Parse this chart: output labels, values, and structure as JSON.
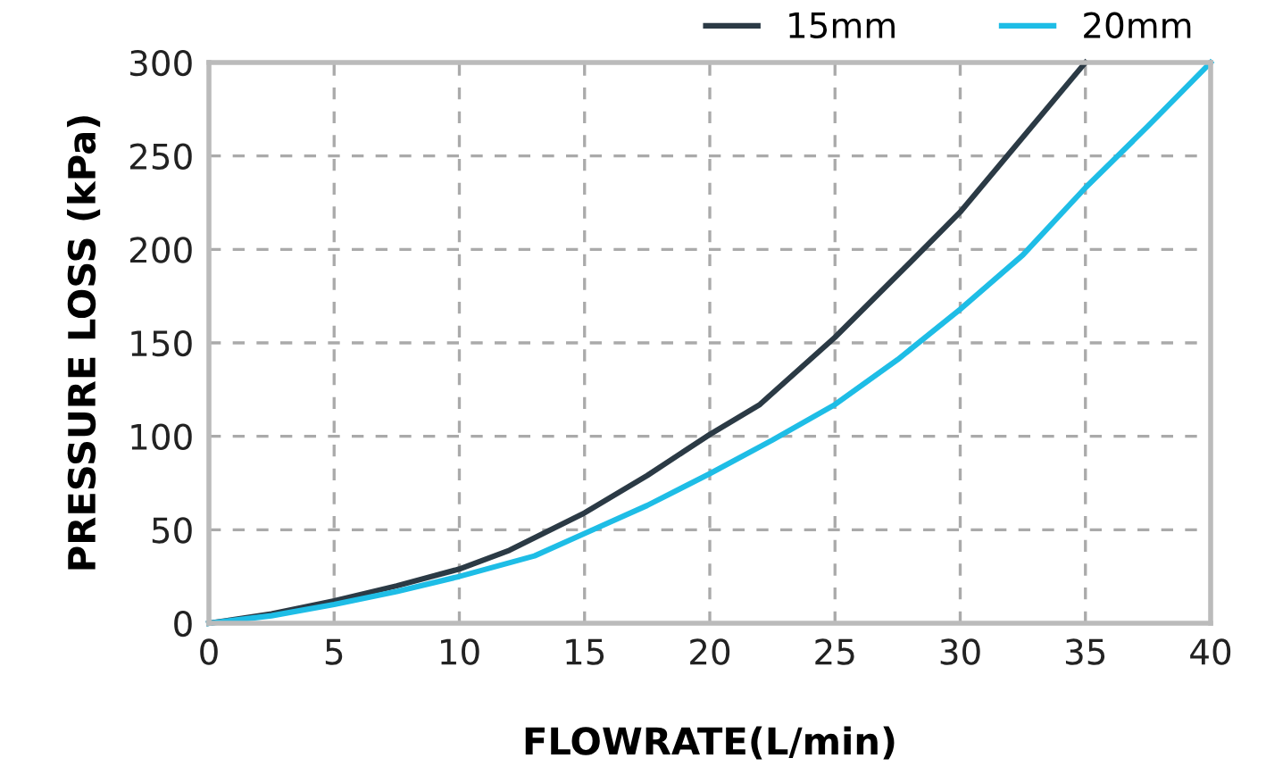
{
  "chart_data": {
    "type": "line",
    "xlabel": "FLOWRATE(L/min)",
    "ylabel": "PRESSURE LOSS (kPa)",
    "xlim": [
      0,
      40
    ],
    "xticks": [
      0,
      5,
      10,
      15,
      20,
      25,
      30,
      35,
      40
    ],
    "ylim": [
      0,
      300
    ],
    "yticks": [
      0,
      50,
      100,
      150,
      200,
      250,
      300
    ],
    "grid": true,
    "legend": "top right",
    "marker": "none",
    "line_style": "solid",
    "series": [
      {
        "name": "15mm",
        "color": "#2b3a45",
        "x": [
          0,
          2.5,
          5,
          7.5,
          10,
          12,
          15,
          17.5,
          20,
          22,
          25,
          28,
          30,
          32,
          35
        ],
        "values": [
          0,
          5,
          12,
          20,
          29,
          39,
          59,
          79,
          101,
          117,
          153,
          193,
          220,
          252,
          300
        ]
      },
      {
        "name": "20mm",
        "color": "#1ebde6",
        "x": [
          0,
          2.5,
          5,
          7.5,
          10,
          13,
          15,
          17.5,
          20,
          22.5,
          25,
          27.5,
          30,
          32.5,
          35,
          37.5,
          40
        ],
        "values": [
          0,
          4,
          10,
          17,
          25,
          36,
          48,
          63,
          80,
          98,
          117,
          141,
          168,
          197,
          233,
          266,
          300
        ]
      }
    ]
  }
}
